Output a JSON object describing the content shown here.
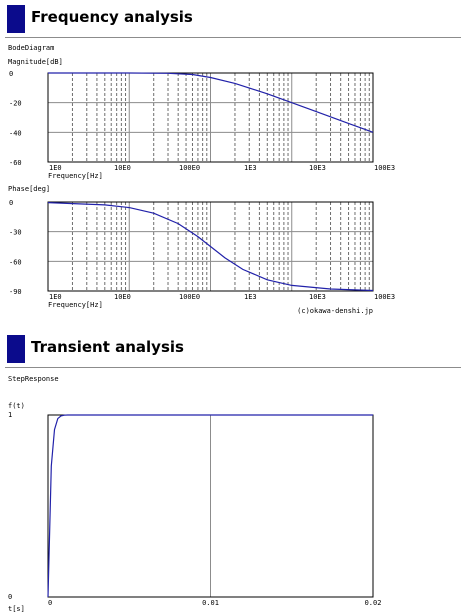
{
  "sections": {
    "frequency": {
      "title": "Frequency analysis"
    },
    "transient": {
      "title": "Transient analysis"
    }
  },
  "colors": {
    "header_marker": "#0b0b8c",
    "curve": "#2222aa",
    "grid_major": "#8c8c8c",
    "grid_minor": "#6e6e6e",
    "frame": "#000000"
  },
  "chart_data": [
    {
      "type": "line",
      "title": "BodeDiagram",
      "panel": "magnitude",
      "xlabel": "Frequency[Hz]",
      "ylabel": "Magnitude[dB]",
      "xscale": "log",
      "xlim": [
        1,
        10000
      ],
      "ylim": [
        -60,
        0
      ],
      "x_tick_labels": [
        "1E0",
        "10E0",
        "100E0",
        "1E3",
        "10E3",
        "100E3"
      ],
      "y_tick_labels": [
        "0",
        "-20",
        "-40",
        "-60"
      ],
      "series": [
        {
          "x": [
            1,
            10,
            30,
            60,
            100,
            200,
            500,
            1000,
            2000,
            5000,
            10000
          ],
          "y": [
            0,
            0,
            -0.2,
            -1,
            -3,
            -7,
            -14,
            -20,
            -26,
            -34,
            -40
          ]
        }
      ],
      "grid": true
    },
    {
      "type": "line",
      "panel": "phase",
      "xlabel": "Frequency[Hz]",
      "ylabel": "Phase[deg]",
      "xscale": "log",
      "xlim": [
        1,
        10000
      ],
      "ylim": [
        -90,
        0
      ],
      "x_tick_labels": [
        "1E0",
        "10E0",
        "100E0",
        "1E3",
        "10E3",
        "100E3"
      ],
      "y_tick_labels": [
        "0",
        "-30",
        "-60",
        "-90"
      ],
      "series": [
        {
          "x": [
            1,
            5,
            10,
            20,
            40,
            70,
            100,
            150,
            250,
            500,
            1000,
            3000,
            10000
          ],
          "y": [
            -0.6,
            -2.9,
            -5.7,
            -11.3,
            -21.8,
            -35,
            -45,
            -56.3,
            -68.2,
            -78.7,
            -84.3,
            -88,
            -89.5
          ]
        }
      ],
      "grid": true,
      "annotation": "(c)okawa-denshi.jp"
    },
    {
      "type": "line",
      "title": "StepResponse",
      "xlabel": "t[s]",
      "ylabel": "f(t)",
      "xlim": [
        0,
        0.02
      ],
      "ylim": [
        0,
        1
      ],
      "x_tick_labels": [
        "0",
        "0.01",
        "0.02"
      ],
      "y_tick_labels": [
        "1",
        "0"
      ],
      "series": [
        {
          "x": [
            0,
            0.0002,
            0.0004,
            0.0006,
            0.0008,
            0.001,
            0.0012,
            0.0015,
            0.002,
            0.0025,
            0.003,
            0.004,
            0.005,
            0.01,
            0.02
          ],
          "y": [
            0,
            0.72,
            0.92,
            0.98,
            0.995,
            0.999,
            1,
            1,
            1,
            1,
            1,
            1,
            1,
            1,
            1
          ]
        }
      ],
      "grid": true
    }
  ]
}
